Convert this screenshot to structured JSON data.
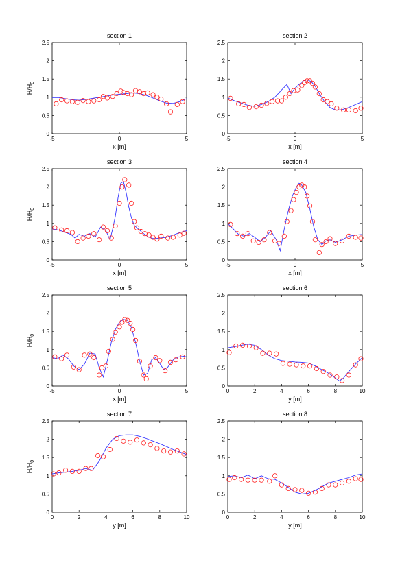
{
  "figure": {
    "y_axis_label": "H/H",
    "y_axis_label_sub": "0"
  },
  "colors": {
    "model_line": "#3333ff",
    "measured_marker": "#ff2020",
    "axes": "#000000"
  },
  "chart_data": [
    {
      "type": "line",
      "title": "section 1",
      "xlabel": "x [m]",
      "ylabel": "H/H0",
      "xlim": [
        -5,
        5
      ],
      "ylim": [
        0,
        2.5
      ],
      "xticks": [
        -5,
        0,
        5
      ],
      "yticks": [
        0,
        0.5,
        1,
        1.5,
        2,
        2.5
      ],
      "grid": false,
      "series": [
        {
          "kind": "line",
          "x": [
            -5,
            -4.5,
            -4,
            -3.5,
            -3,
            -2.5,
            -2,
            -1.5,
            -1,
            -0.5,
            0,
            0.5,
            1,
            1.5,
            2,
            2.5,
            3,
            3.5,
            4,
            4.5,
            5
          ],
          "y": [
            0.99,
            0.99,
            0.96,
            0.93,
            0.92,
            0.94,
            0.97,
            1.0,
            1.03,
            1.06,
            1.08,
            1.1,
            1.12,
            1.1,
            1.05,
            0.98,
            0.9,
            0.84,
            0.83,
            0.88,
            0.96
          ]
        },
        {
          "kind": "marker",
          "x": [
            -4.7,
            -4.3,
            -3.9,
            -3.5,
            -3.1,
            -2.7,
            -2.3,
            -1.9,
            -1.5,
            -1.2,
            -0.9,
            -0.5,
            -0.2,
            0.1,
            0.3,
            0.6,
            0.9,
            1.2,
            1.5,
            1.8,
            2.1,
            2.5,
            2.8,
            3.1,
            3.5,
            3.8,
            4.3,
            4.7
          ],
          "y": [
            0.82,
            0.93,
            0.9,
            0.88,
            0.86,
            0.91,
            0.88,
            0.9,
            0.93,
            1.02,
            0.98,
            1.02,
            1.1,
            1.17,
            1.13,
            1.1,
            1.07,
            1.18,
            1.15,
            1.1,
            1.12,
            1.07,
            1.0,
            0.95,
            0.82,
            0.6,
            0.8,
            0.88
          ]
        }
      ]
    },
    {
      "type": "line",
      "title": "section 2",
      "xlabel": "x [m]",
      "ylabel": "",
      "xlim": [
        -5,
        5
      ],
      "ylim": [
        0,
        2.5
      ],
      "xticks": [
        -5,
        0,
        5
      ],
      "yticks": [
        0,
        0.5,
        1,
        1.5,
        2,
        2.5
      ],
      "grid": false,
      "series": [
        {
          "kind": "line",
          "x": [
            -5,
            -4.5,
            -4,
            -3.5,
            -3,
            -2.5,
            -2,
            -1.5,
            -1,
            -0.6,
            -0.3,
            0,
            0.3,
            0.6,
            0.9,
            1.2,
            1.5,
            1.8,
            2.2,
            2.6,
            3,
            3.5,
            4,
            4.5,
            5
          ],
          "y": [
            0.98,
            0.9,
            0.84,
            0.78,
            0.75,
            0.8,
            0.88,
            1.0,
            1.2,
            1.35,
            1.1,
            1.25,
            1.35,
            1.45,
            1.48,
            1.43,
            1.3,
            1.1,
            0.88,
            0.72,
            0.65,
            0.66,
            0.72,
            0.8,
            0.88
          ]
        },
        {
          "kind": "marker",
          "x": [
            -4.8,
            -4.2,
            -3.8,
            -3.4,
            -2.9,
            -2.5,
            -2.1,
            -1.7,
            -1.3,
            -1.0,
            -0.7,
            -0.4,
            -0.1,
            0.2,
            0.5,
            0.7,
            0.9,
            1.1,
            1.3,
            1.5,
            1.8,
            2.1,
            2.4,
            2.7,
            3.1,
            3.6,
            4.0,
            4.5,
            4.9
          ],
          "y": [
            0.97,
            0.82,
            0.8,
            0.72,
            0.74,
            0.78,
            0.83,
            0.88,
            0.9,
            0.9,
            1.0,
            1.1,
            1.18,
            1.2,
            1.32,
            1.4,
            1.45,
            1.45,
            1.38,
            1.28,
            1.1,
            0.93,
            0.88,
            0.82,
            0.7,
            0.65,
            0.65,
            0.63,
            0.7
          ]
        }
      ]
    },
    {
      "type": "line",
      "title": "section 3",
      "xlabel": "x [m]",
      "ylabel": "H/H0",
      "xlim": [
        -5,
        5
      ],
      "ylim": [
        0,
        2.5
      ],
      "xticks": [
        -5,
        0,
        5
      ],
      "yticks": [
        0,
        0.5,
        1,
        1.5,
        2,
        2.5
      ],
      "grid": false,
      "series": [
        {
          "kind": "line",
          "x": [
            -5,
            -4.5,
            -4,
            -3.6,
            -3.3,
            -3,
            -2.6,
            -2.2,
            -1.8,
            -1.4,
            -1.0,
            -0.7,
            -0.5,
            -0.3,
            -0.1,
            0.1,
            0.3,
            0.5,
            0.7,
            0.9,
            1.1,
            1.4,
            1.8,
            2.2,
            2.6,
            3,
            3.5,
            4,
            4.5,
            5
          ],
          "y": [
            0.85,
            0.82,
            0.75,
            0.7,
            0.6,
            0.7,
            0.65,
            0.72,
            0.62,
            0.9,
            0.8,
            0.55,
            0.85,
            1.2,
            1.7,
            2.1,
            2.15,
            1.85,
            1.45,
            1.15,
            0.95,
            0.85,
            0.72,
            0.62,
            0.58,
            0.6,
            0.62,
            0.68,
            0.75,
            0.8
          ]
        },
        {
          "kind": "marker",
          "x": [
            -4.8,
            -4.3,
            -3.9,
            -3.5,
            -3.1,
            -2.7,
            -2.3,
            -1.9,
            -1.5,
            -1.2,
            -0.9,
            -0.6,
            -0.3,
            0.0,
            0.2,
            0.4,
            0.7,
            0.9,
            1.1,
            1.3,
            1.6,
            1.9,
            2.2,
            2.5,
            2.8,
            3.1,
            3.6,
            4.0,
            4.5,
            4.8
          ],
          "y": [
            0.88,
            0.82,
            0.8,
            0.75,
            0.5,
            0.6,
            0.65,
            0.72,
            0.55,
            0.9,
            0.8,
            0.6,
            0.93,
            1.55,
            2.0,
            2.2,
            2.05,
            1.55,
            1.05,
            0.88,
            0.78,
            0.72,
            0.68,
            0.62,
            0.57,
            0.65,
            0.6,
            0.62,
            0.68,
            0.73
          ]
        }
      ]
    },
    {
      "type": "line",
      "title": "section 4",
      "xlabel": "x [m]",
      "ylabel": "",
      "xlim": [
        -5,
        5
      ],
      "ylim": [
        0,
        2.5
      ],
      "xticks": [
        -5,
        0,
        5
      ],
      "yticks": [
        0,
        0.5,
        1,
        1.5,
        2,
        2.5
      ],
      "grid": false,
      "series": [
        {
          "kind": "line",
          "x": [
            -5,
            -4.6,
            -4.2,
            -3.8,
            -3.4,
            -3.0,
            -2.6,
            -2.2,
            -1.8,
            -1.4,
            -1.1,
            -0.8,
            -0.5,
            -0.2,
            0.1,
            0.3,
            0.5,
            0.8,
            1.1,
            1.4,
            1.7,
            2.0,
            2.3,
            2.6,
            3.0,
            3.5,
            4.0,
            4.5,
            5
          ],
          "y": [
            1.0,
            0.85,
            0.7,
            0.65,
            0.72,
            0.62,
            0.5,
            0.62,
            0.8,
            0.55,
            0.25,
            0.85,
            1.35,
            1.75,
            2.0,
            2.1,
            2.05,
            1.85,
            1.4,
            0.9,
            0.55,
            0.42,
            0.52,
            0.55,
            0.48,
            0.55,
            0.65,
            0.68,
            0.7
          ]
        },
        {
          "kind": "marker",
          "x": [
            -4.8,
            -4.3,
            -3.9,
            -3.5,
            -3.1,
            -2.7,
            -2.3,
            -1.9,
            -1.5,
            -1.2,
            -0.8,
            -0.6,
            -0.3,
            -0.1,
            0.1,
            0.3,
            0.5,
            0.7,
            0.9,
            1.1,
            1.3,
            1.5,
            1.8,
            2.0,
            2.3,
            2.6,
            3.0,
            3.5,
            4.0,
            4.5,
            4.9
          ],
          "y": [
            0.97,
            0.72,
            0.65,
            0.72,
            0.52,
            0.48,
            0.55,
            0.75,
            0.52,
            0.45,
            0.65,
            1.05,
            1.35,
            1.65,
            1.85,
            2.0,
            2.05,
            2.0,
            1.75,
            1.48,
            1.05,
            0.55,
            0.2,
            0.42,
            0.5,
            0.58,
            0.45,
            0.52,
            0.65,
            0.62,
            0.6
          ]
        }
      ]
    },
    {
      "type": "line",
      "title": "section 5",
      "xlabel": "x [m]",
      "ylabel": "H/H0",
      "xlim": [
        -5,
        5
      ],
      "ylim": [
        0,
        2.5
      ],
      "xticks": [
        -5,
        0,
        5
      ],
      "yticks": [
        0,
        0.5,
        1,
        1.5,
        2,
        2.5
      ],
      "grid": false,
      "series": [
        {
          "kind": "line",
          "x": [
            -5,
            -4.6,
            -4.2,
            -3.8,
            -3.4,
            -3.0,
            -2.6,
            -2.2,
            -1.8,
            -1.5,
            -1.2,
            -0.9,
            -0.6,
            -0.3,
            0.0,
            0.3,
            0.6,
            0.9,
            1.2,
            1.5,
            1.8,
            2.1,
            2.4,
            2.7,
            3.0,
            3.3,
            3.6,
            4.0,
            4.4,
            4.8,
            5
          ],
          "y": [
            0.78,
            0.75,
            0.85,
            0.75,
            0.55,
            0.45,
            0.6,
            0.9,
            0.88,
            0.5,
            0.25,
            0.7,
            1.2,
            1.55,
            1.75,
            1.83,
            1.8,
            1.6,
            1.2,
            0.7,
            0.3,
            0.35,
            0.72,
            0.78,
            0.62,
            0.45,
            0.52,
            0.72,
            0.8,
            0.82,
            0.8
          ]
        },
        {
          "kind": "marker",
          "x": [
            -4.8,
            -4.3,
            -3.9,
            -3.4,
            -3.0,
            -2.6,
            -2.2,
            -1.9,
            -1.5,
            -1.3,
            -1.0,
            -0.8,
            -0.5,
            -0.3,
            0.0,
            0.2,
            0.4,
            0.6,
            0.8,
            1.0,
            1.2,
            1.5,
            1.8,
            2.0,
            2.3,
            2.7,
            3.0,
            3.4,
            3.8,
            4.2,
            4.7
          ],
          "y": [
            0.8,
            0.75,
            0.85,
            0.52,
            0.45,
            0.85,
            0.88,
            0.78,
            0.3,
            0.5,
            0.55,
            0.95,
            1.28,
            1.48,
            1.62,
            1.75,
            1.82,
            1.8,
            1.72,
            1.55,
            1.25,
            0.68,
            0.3,
            0.2,
            0.55,
            0.78,
            0.7,
            0.42,
            0.65,
            0.72,
            0.8
          ]
        }
      ]
    },
    {
      "type": "line",
      "title": "section 6",
      "xlabel": "y [m]",
      "ylabel": "",
      "xlim": [
        0,
        10
      ],
      "ylim": [
        0,
        2.5
      ],
      "xticks": [
        0,
        2,
        4,
        6,
        8,
        10
      ],
      "yticks": [
        0,
        0.5,
        1,
        1.5,
        2,
        2.5
      ],
      "grid": false,
      "series": [
        {
          "kind": "line",
          "x": [
            0,
            0.5,
            1,
            1.5,
            2,
            2.5,
            3,
            3.5,
            4,
            4.5,
            5,
            5.5,
            6,
            6.5,
            7,
            7.5,
            8,
            8.3,
            8.6,
            9,
            9.5,
            10
          ],
          "y": [
            1.05,
            1.08,
            1.12,
            1.15,
            1.12,
            1.0,
            0.85,
            0.75,
            0.7,
            0.68,
            0.66,
            0.65,
            0.63,
            0.55,
            0.45,
            0.35,
            0.22,
            0.14,
            0.22,
            0.4,
            0.6,
            0.78
          ]
        },
        {
          "kind": "marker",
          "x": [
            0.1,
            0.6,
            1.1,
            1.6,
            2.1,
            2.6,
            3.1,
            3.6,
            4.1,
            4.6,
            5.1,
            5.6,
            6.1,
            6.6,
            7.1,
            7.6,
            8.1,
            8.5,
            9.0,
            9.5,
            9.9
          ],
          "y": [
            0.92,
            1.1,
            1.12,
            1.1,
            1.05,
            0.9,
            0.9,
            0.88,
            0.62,
            0.6,
            0.58,
            0.55,
            0.55,
            0.48,
            0.4,
            0.3,
            0.25,
            0.15,
            0.3,
            0.58,
            0.75
          ]
        }
      ]
    },
    {
      "type": "line",
      "title": "section 7",
      "xlabel": "y [m]",
      "ylabel": "H/H0",
      "xlim": [
        0,
        10
      ],
      "ylim": [
        0,
        2.5
      ],
      "xticks": [
        0,
        2,
        4,
        6,
        8,
        10
      ],
      "yticks": [
        0,
        0.5,
        1,
        1.5,
        2,
        2.5
      ],
      "grid": false,
      "series": [
        {
          "kind": "line",
          "x": [
            0,
            0.5,
            1,
            1.5,
            2,
            2.5,
            3,
            3.5,
            4,
            4.5,
            5,
            5.5,
            6,
            6.5,
            7,
            7.5,
            8,
            8.5,
            9,
            9.5,
            10
          ],
          "y": [
            1.05,
            1.08,
            1.1,
            1.12,
            1.15,
            1.2,
            1.15,
            1.4,
            1.75,
            2.0,
            2.1,
            2.12,
            2.12,
            2.08,
            2.02,
            1.95,
            1.88,
            1.8,
            1.72,
            1.65,
            1.58
          ]
        },
        {
          "kind": "marker",
          "x": [
            0.1,
            0.5,
            1.0,
            1.5,
            2.0,
            2.5,
            2.9,
            3.4,
            3.8,
            4.3,
            4.8,
            5.3,
            5.8,
            6.3,
            6.8,
            7.3,
            7.8,
            8.3,
            8.8,
            9.3,
            9.8
          ],
          "y": [
            1.05,
            1.08,
            1.15,
            1.12,
            1.12,
            1.2,
            1.2,
            1.55,
            1.52,
            1.72,
            2.02,
            1.95,
            1.92,
            1.98,
            1.9,
            1.85,
            1.75,
            1.68,
            1.65,
            1.68,
            1.6
          ]
        }
      ]
    },
    {
      "type": "line",
      "title": "section 8",
      "xlabel": "y [m]",
      "ylabel": "",
      "xlim": [
        0,
        10
      ],
      "ylim": [
        0,
        2.5
      ],
      "xticks": [
        0,
        2,
        4,
        6,
        8,
        10
      ],
      "yticks": [
        0,
        0.5,
        1,
        1.5,
        2,
        2.5
      ],
      "grid": false,
      "series": [
        {
          "kind": "line",
          "x": [
            0,
            0.5,
            1,
            1.5,
            2,
            2.5,
            3,
            3.5,
            4,
            4.5,
            5,
            5.5,
            6,
            6.5,
            7,
            7.5,
            8,
            8.5,
            9,
            9.5,
            10
          ],
          "y": [
            0.98,
            1.0,
            0.95,
            1.02,
            0.92,
            1.0,
            0.92,
            0.9,
            0.8,
            0.68,
            0.55,
            0.5,
            0.52,
            0.6,
            0.7,
            0.8,
            0.85,
            0.9,
            0.95,
            1.02,
            1.05
          ]
        },
        {
          "kind": "marker",
          "x": [
            0.1,
            0.5,
            1.0,
            1.5,
            2.0,
            2.5,
            3.1,
            3.5,
            4.0,
            4.5,
            5.0,
            5.5,
            6.0,
            6.5,
            7.0,
            7.5,
            8.0,
            8.5,
            9.0,
            9.5,
            9.9
          ],
          "y": [
            0.9,
            0.95,
            0.9,
            0.88,
            0.88,
            0.88,
            0.85,
            1.0,
            0.75,
            0.65,
            0.62,
            0.6,
            0.52,
            0.55,
            0.65,
            0.75,
            0.75,
            0.8,
            0.85,
            0.92,
            0.9
          ]
        }
      ]
    }
  ]
}
